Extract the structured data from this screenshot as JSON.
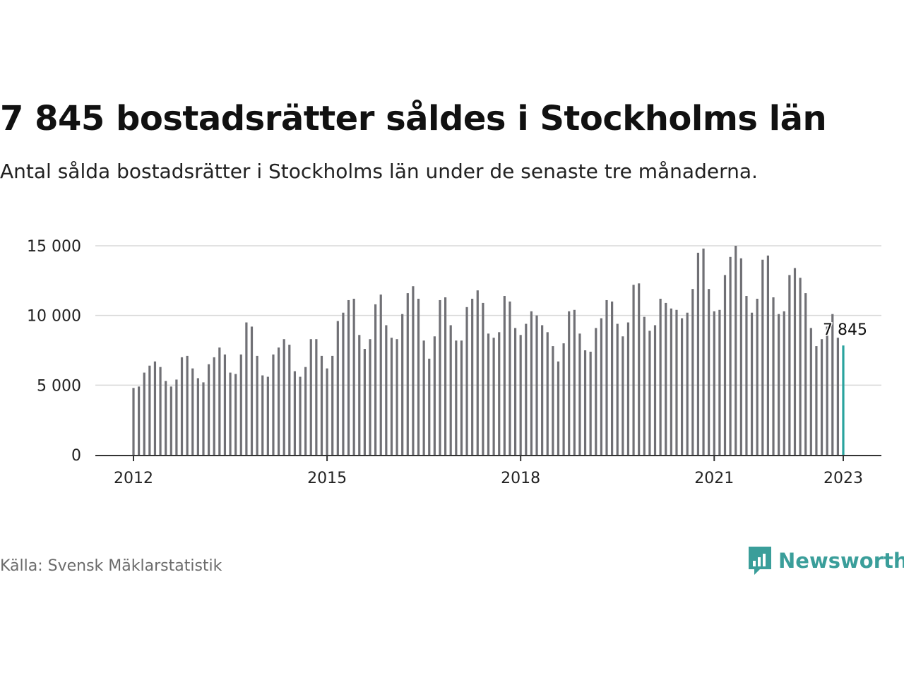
{
  "title": "7 845 bostadsrätter såldes i Stockholms län",
  "subtitle": "Antal sålda bostadsrätter i Stockholms län under de senaste tre månaderna.",
  "source": "Källa: Svensk Mäklarstatistik",
  "brand": {
    "name": "Newsworthy",
    "color": "#3a9e9a",
    "icon": "newsworthy-logo-icon"
  },
  "colors": {
    "bar": "#707075",
    "highlight": "#2aa39e",
    "grid": "#d9d9d9",
    "axis": "#333333"
  },
  "chart_data": {
    "type": "bar",
    "title": "7 845 bostadsrätter såldes i Stockholms län",
    "subtitle": "Antal sålda bostadsrätter i Stockholms län under de senaste tre månaderna.",
    "x_start": "2012-01",
    "x_end": "2023-01",
    "x_ticks": [
      "2012",
      "2015",
      "2018",
      "2021",
      "2023"
    ],
    "y_ticks": [
      0,
      5000,
      10000,
      15000
    ],
    "y_tick_labels": [
      "0",
      "5 000",
      "10 000",
      "15 000"
    ],
    "ylim": [
      0,
      15000
    ],
    "grid": true,
    "highlight_label": "7 845",
    "values": [
      4800,
      4900,
      5900,
      6400,
      6700,
      6300,
      5300,
      4900,
      5400,
      7000,
      7100,
      6200,
      5500,
      5200,
      6500,
      7000,
      7700,
      7200,
      5900,
      5800,
      7200,
      9500,
      9200,
      7100,
      5700,
      5600,
      7200,
      7700,
      8300,
      7900,
      6000,
      5600,
      6300,
      8300,
      8300,
      7100,
      6200,
      7100,
      9600,
      10200,
      11100,
      11200,
      8600,
      7600,
      8300,
      10800,
      11500,
      9300,
      8400,
      8300,
      10100,
      11600,
      12100,
      11200,
      8200,
      6900,
      8500,
      11100,
      11300,
      9300,
      8200,
      8200,
      10600,
      11200,
      11800,
      10900,
      8700,
      8400,
      8800,
      11400,
      11000,
      9100,
      8600,
      9400,
      10300,
      10000,
      9300,
      8800,
      7800,
      6700,
      8000,
      10300,
      10400,
      8700,
      7500,
      7400,
      9100,
      9800,
      11100,
      11000,
      9400,
      8500,
      9500,
      12200,
      12300,
      9900,
      8900,
      9300,
      11200,
      10900,
      10500,
      10400,
      9800,
      10200,
      11900,
      14500,
      14800,
      11900,
      10300,
      10400,
      12900,
      14200,
      15000,
      14100,
      11400,
      10200,
      11200,
      14000,
      14300,
      11300,
      10100,
      10300,
      12900,
      13400,
      12700,
      11600,
      9100,
      7800,
      8300,
      9200,
      10100,
      8400,
      7845
    ]
  }
}
